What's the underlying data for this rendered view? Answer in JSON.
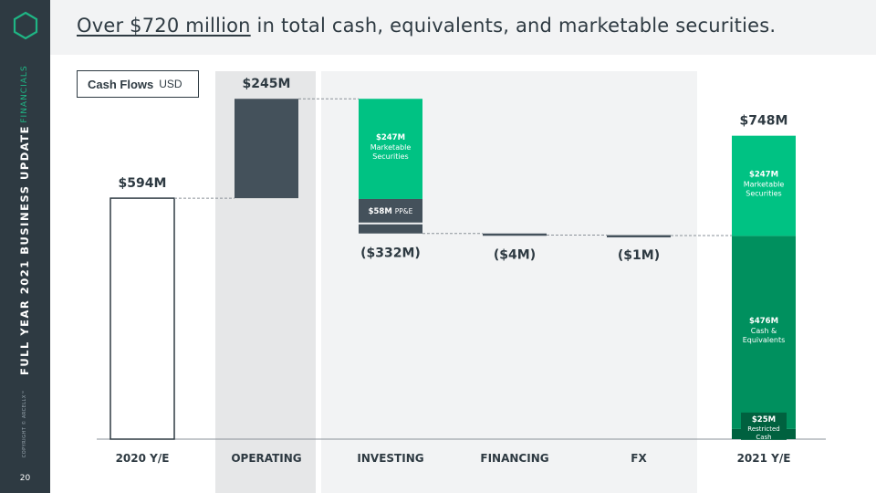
{
  "sidebar": {
    "section": "FINANCIALS",
    "deck_title": "FULL YEAR 2021 BUSINESS UPDATE",
    "copyright": "COPYRIGHT © ARCELLX™",
    "page_number": "20"
  },
  "header": {
    "headline_highlight": "Over $720 million",
    "headline_rest": " in total cash, equivalents, and marketable securities."
  },
  "legend": {
    "label_bold": "Cash Flows",
    "label_unit": "USD"
  },
  "colors": {
    "dark": "#44515b",
    "green_light": "#00c283",
    "green_mid": "#00905e",
    "green_dark": "#00613f",
    "shade": "#e6e7e8",
    "shade_light": "#f2f3f4",
    "connector": "#8a9198"
  },
  "chart_data": {
    "type": "bar",
    "subtype": "waterfall",
    "unit": "USD millions",
    "categories": [
      "2020 Y/E",
      "OPERATING",
      "INVESTING",
      "FINANCING",
      "FX",
      "2021 Y/E"
    ],
    "ylim": [
      0,
      800
    ],
    "grid": false,
    "steps": [
      {
        "category": "2020 Y/E",
        "kind": "total",
        "value": 594,
        "label": "$594M"
      },
      {
        "category": "OPERATING",
        "kind": "delta",
        "value": 245,
        "label": "$245M"
      },
      {
        "category": "INVESTING",
        "kind": "delta",
        "value": -332,
        "label": "($332M)",
        "components": [
          {
            "name": "Marketable Securities",
            "value": 247,
            "label": "$247M",
            "sublabel": "Marketable Securities"
          },
          {
            "name": "PP&E",
            "value": 58,
            "label": "$58M",
            "sublabel": "PP&E"
          }
        ]
      },
      {
        "category": "FINANCING",
        "kind": "delta",
        "value": -4,
        "label": "($4M)"
      },
      {
        "category": "FX",
        "kind": "delta",
        "value": -1,
        "label": "($1M)"
      },
      {
        "category": "2021 Y/E",
        "kind": "total",
        "value": 748,
        "label": "$748M",
        "components": [
          {
            "name": "Restricted Cash",
            "value": 25,
            "label": "$25M",
            "sublabel": "Restricted Cash"
          },
          {
            "name": "Cash & Equivalents",
            "value": 476,
            "label": "$476M",
            "sublabel": "Cash & Equivalents"
          },
          {
            "name": "Marketable Securities",
            "value": 247,
            "label": "$247M",
            "sublabel": "Marketable Securities"
          }
        ]
      }
    ]
  }
}
